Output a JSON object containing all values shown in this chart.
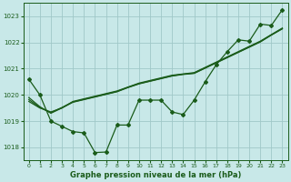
{
  "title": "Graphe pression niveau de la mer (hPa)",
  "background_color": "#c8e8e8",
  "grid_color": "#a0c8c8",
  "line_color": "#1a5c1a",
  "x_ticks": [
    0,
    1,
    2,
    3,
    4,
    5,
    6,
    7,
    8,
    9,
    10,
    11,
    12,
    13,
    14,
    15,
    16,
    17,
    18,
    19,
    20,
    21,
    22,
    23
  ],
  "ylim": [
    1017.5,
    1023.5
  ],
  "yticks": [
    1018,
    1019,
    1020,
    1021,
    1022,
    1023
  ],
  "series1": [
    1020.6,
    1020.0,
    1019.0,
    1018.8,
    1018.6,
    1018.55,
    1017.8,
    1017.82,
    1018.85,
    1018.85,
    1019.8,
    1019.8,
    1019.8,
    1019.35,
    1019.25,
    1019.8,
    1020.5,
    1021.15,
    1021.65,
    1022.1,
    1022.05,
    1022.7,
    1022.65,
    1023.25
  ],
  "series2": [
    1019.9,
    1019.55,
    1019.3,
    1019.5,
    1019.75,
    1019.85,
    1019.95,
    1020.05,
    1020.15,
    1020.3,
    1020.45,
    1020.55,
    1020.65,
    1020.75,
    1020.8,
    1020.85,
    1021.05,
    1021.25,
    1021.45,
    1021.65,
    1021.85,
    1022.05,
    1022.3,
    1022.55
  ],
  "series3": [
    1019.75,
    1019.5,
    1019.35,
    1019.5,
    1019.72,
    1019.82,
    1019.92,
    1020.02,
    1020.12,
    1020.28,
    1020.42,
    1020.52,
    1020.62,
    1020.72,
    1020.78,
    1020.82,
    1021.02,
    1021.22,
    1021.42,
    1021.62,
    1021.82,
    1022.02,
    1022.28,
    1022.52
  ],
  "series4": [
    1019.82,
    1019.52,
    1019.32,
    1019.52,
    1019.73,
    1019.83,
    1019.93,
    1020.03,
    1020.13,
    1020.29,
    1020.43,
    1020.53,
    1020.63,
    1020.73,
    1020.79,
    1020.83,
    1021.03,
    1021.23,
    1021.43,
    1021.63,
    1021.83,
    1022.03,
    1022.29,
    1022.53
  ]
}
